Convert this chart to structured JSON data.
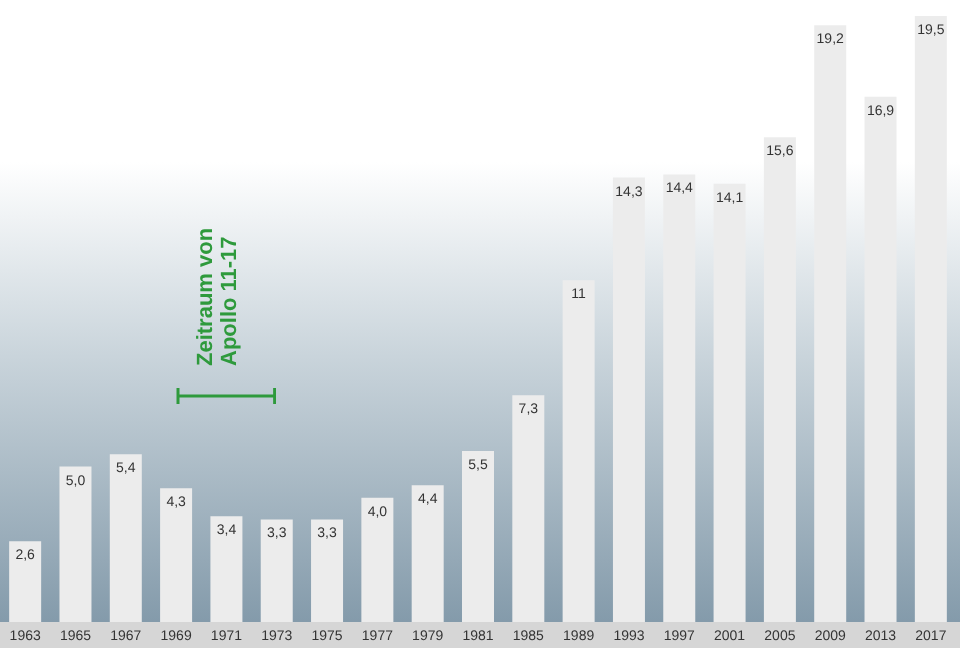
{
  "chart_data": {
    "type": "bar",
    "categories": [
      "1963",
      "1965",
      "1967",
      "1969",
      "1971",
      "1973",
      "1975",
      "1977",
      "1979",
      "1981",
      "1985",
      "1989",
      "1993",
      "1997",
      "2001",
      "2005",
      "2009",
      "2013",
      "2017"
    ],
    "values": [
      2.6,
      5.0,
      5.4,
      4.3,
      3.4,
      3.3,
      3.3,
      4.0,
      4.4,
      5.5,
      7.3,
      11,
      14.3,
      14.4,
      14.1,
      15.6,
      19.2,
      16.9,
      19.5
    ],
    "value_labels": [
      "2,6",
      "5,0",
      "5,4",
      "4,3",
      "3,4",
      "3,3",
      "3,3",
      "4,0",
      "4,4",
      "5,5",
      "7,3",
      "11",
      "14,3",
      "14,4",
      "14,1",
      "15,6",
      "19,2",
      "16,9",
      "19,5"
    ],
    "color": "#ececec",
    "annotations": [
      "Zeitraum von Apollo 11-17"
    ]
  }
}
